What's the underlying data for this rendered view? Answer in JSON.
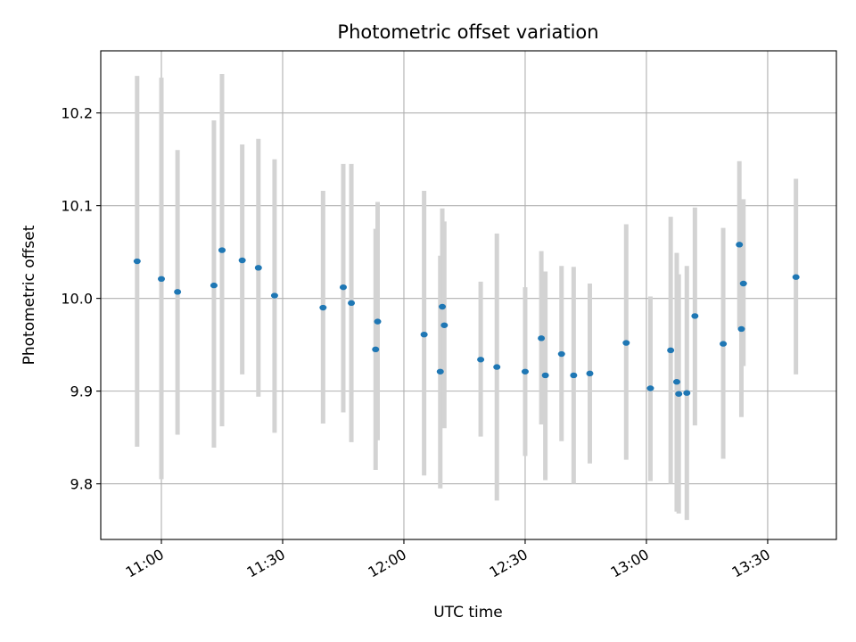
{
  "chart_data": {
    "type": "scatter",
    "title": "Photometric offset variation",
    "xlabel": "UTC time",
    "ylabel": "Photometric offset",
    "xlim": [
      "10:45",
      "13:47"
    ],
    "ylim": [
      9.74,
      10.267
    ],
    "grid": true,
    "x_ticks": [
      "11:00",
      "11:30",
      "12:00",
      "12:30",
      "13:00",
      "13:30"
    ],
    "y_ticks": [
      9.8,
      9.9,
      10.0,
      10.1,
      10.2
    ],
    "y_tick_labels": [
      "9.8",
      "9.9",
      "10.0",
      "10.1",
      "10.2"
    ],
    "marker_color": "#1f77b4",
    "errorbar_color": "#d3d3d3",
    "points": [
      {
        "x": "10:54",
        "y": 10.04,
        "ylow": 9.84,
        "yhigh": 10.24
      },
      {
        "x": "11:00",
        "y": 10.021,
        "ylow": 9.805,
        "yhigh": 10.238
      },
      {
        "x": "11:04",
        "y": 10.007,
        "ylow": 9.853,
        "yhigh": 10.16
      },
      {
        "x": "11:13",
        "y": 10.014,
        "ylow": 9.839,
        "yhigh": 10.192
      },
      {
        "x": "11:15",
        "y": 10.052,
        "ylow": 9.862,
        "yhigh": 10.242
      },
      {
        "x": "11:20",
        "y": 10.041,
        "ylow": 9.918,
        "yhigh": 10.166
      },
      {
        "x": "11:24",
        "y": 10.033,
        "ylow": 9.894,
        "yhigh": 10.172
      },
      {
        "x": "11:28",
        "y": 10.003,
        "ylow": 9.855,
        "yhigh": 10.15
      },
      {
        "x": "11:40",
        "y": 9.99,
        "ylow": 9.865,
        "yhigh": 10.116
      },
      {
        "x": "11:45",
        "y": 10.012,
        "ylow": 9.877,
        "yhigh": 10.145
      },
      {
        "x": "11:47",
        "y": 9.995,
        "ylow": 9.845,
        "yhigh": 10.145
      },
      {
        "x": "11:53",
        "y": 9.945,
        "ylow": 9.815,
        "yhigh": 10.075
      },
      {
        "x": "11:53.5",
        "y": 9.975,
        "ylow": 9.847,
        "yhigh": 10.104
      },
      {
        "x": "12:05",
        "y": 9.961,
        "ylow": 9.809,
        "yhigh": 10.116
      },
      {
        "x": "12:09",
        "y": 9.921,
        "ylow": 9.795,
        "yhigh": 10.046
      },
      {
        "x": "12:09.5",
        "y": 9.991,
        "ylow": 9.883,
        "yhigh": 10.097
      },
      {
        "x": "12:10",
        "y": 9.971,
        "ylow": 9.86,
        "yhigh": 10.083
      },
      {
        "x": "12:19",
        "y": 9.934,
        "ylow": 9.851,
        "yhigh": 10.018
      },
      {
        "x": "12:23",
        "y": 9.926,
        "ylow": 9.782,
        "yhigh": 10.07
      },
      {
        "x": "12:30",
        "y": 9.921,
        "ylow": 9.83,
        "yhigh": 10.012
      },
      {
        "x": "12:34",
        "y": 9.957,
        "ylow": 9.864,
        "yhigh": 10.051
      },
      {
        "x": "12:35",
        "y": 9.917,
        "ylow": 9.804,
        "yhigh": 10.029
      },
      {
        "x": "12:39",
        "y": 9.94,
        "ylow": 9.846,
        "yhigh": 10.035
      },
      {
        "x": "12:42",
        "y": 9.917,
        "ylow": 9.8,
        "yhigh": 10.034
      },
      {
        "x": "12:46",
        "y": 9.919,
        "ylow": 9.822,
        "yhigh": 10.016
      },
      {
        "x": "12:55",
        "y": 9.952,
        "ylow": 9.826,
        "yhigh": 10.08
      },
      {
        "x": "13:01",
        "y": 9.903,
        "ylow": 9.803,
        "yhigh": 10.002
      },
      {
        "x": "13:06",
        "y": 9.944,
        "ylow": 9.8,
        "yhigh": 10.088
      },
      {
        "x": "13:07.5",
        "y": 9.91,
        "ylow": 9.77,
        "yhigh": 10.049
      },
      {
        "x": "13:08",
        "y": 9.897,
        "ylow": 9.768,
        "yhigh": 10.026
      },
      {
        "x": "13:10",
        "y": 9.898,
        "ylow": 9.761,
        "yhigh": 10.035
      },
      {
        "x": "13:12",
        "y": 9.981,
        "ylow": 9.863,
        "yhigh": 10.098
      },
      {
        "x": "13:19",
        "y": 9.951,
        "ylow": 9.827,
        "yhigh": 10.076
      },
      {
        "x": "13:23",
        "y": 10.058,
        "ylow": 9.968,
        "yhigh": 10.148
      },
      {
        "x": "13:23.5",
        "y": 9.967,
        "ylow": 9.872,
        "yhigh": 10.063
      },
      {
        "x": "13:24",
        "y": 10.016,
        "ylow": 9.927,
        "yhigh": 10.107
      },
      {
        "x": "13:37",
        "y": 10.023,
        "ylow": 9.918,
        "yhigh": 10.129
      }
    ]
  }
}
